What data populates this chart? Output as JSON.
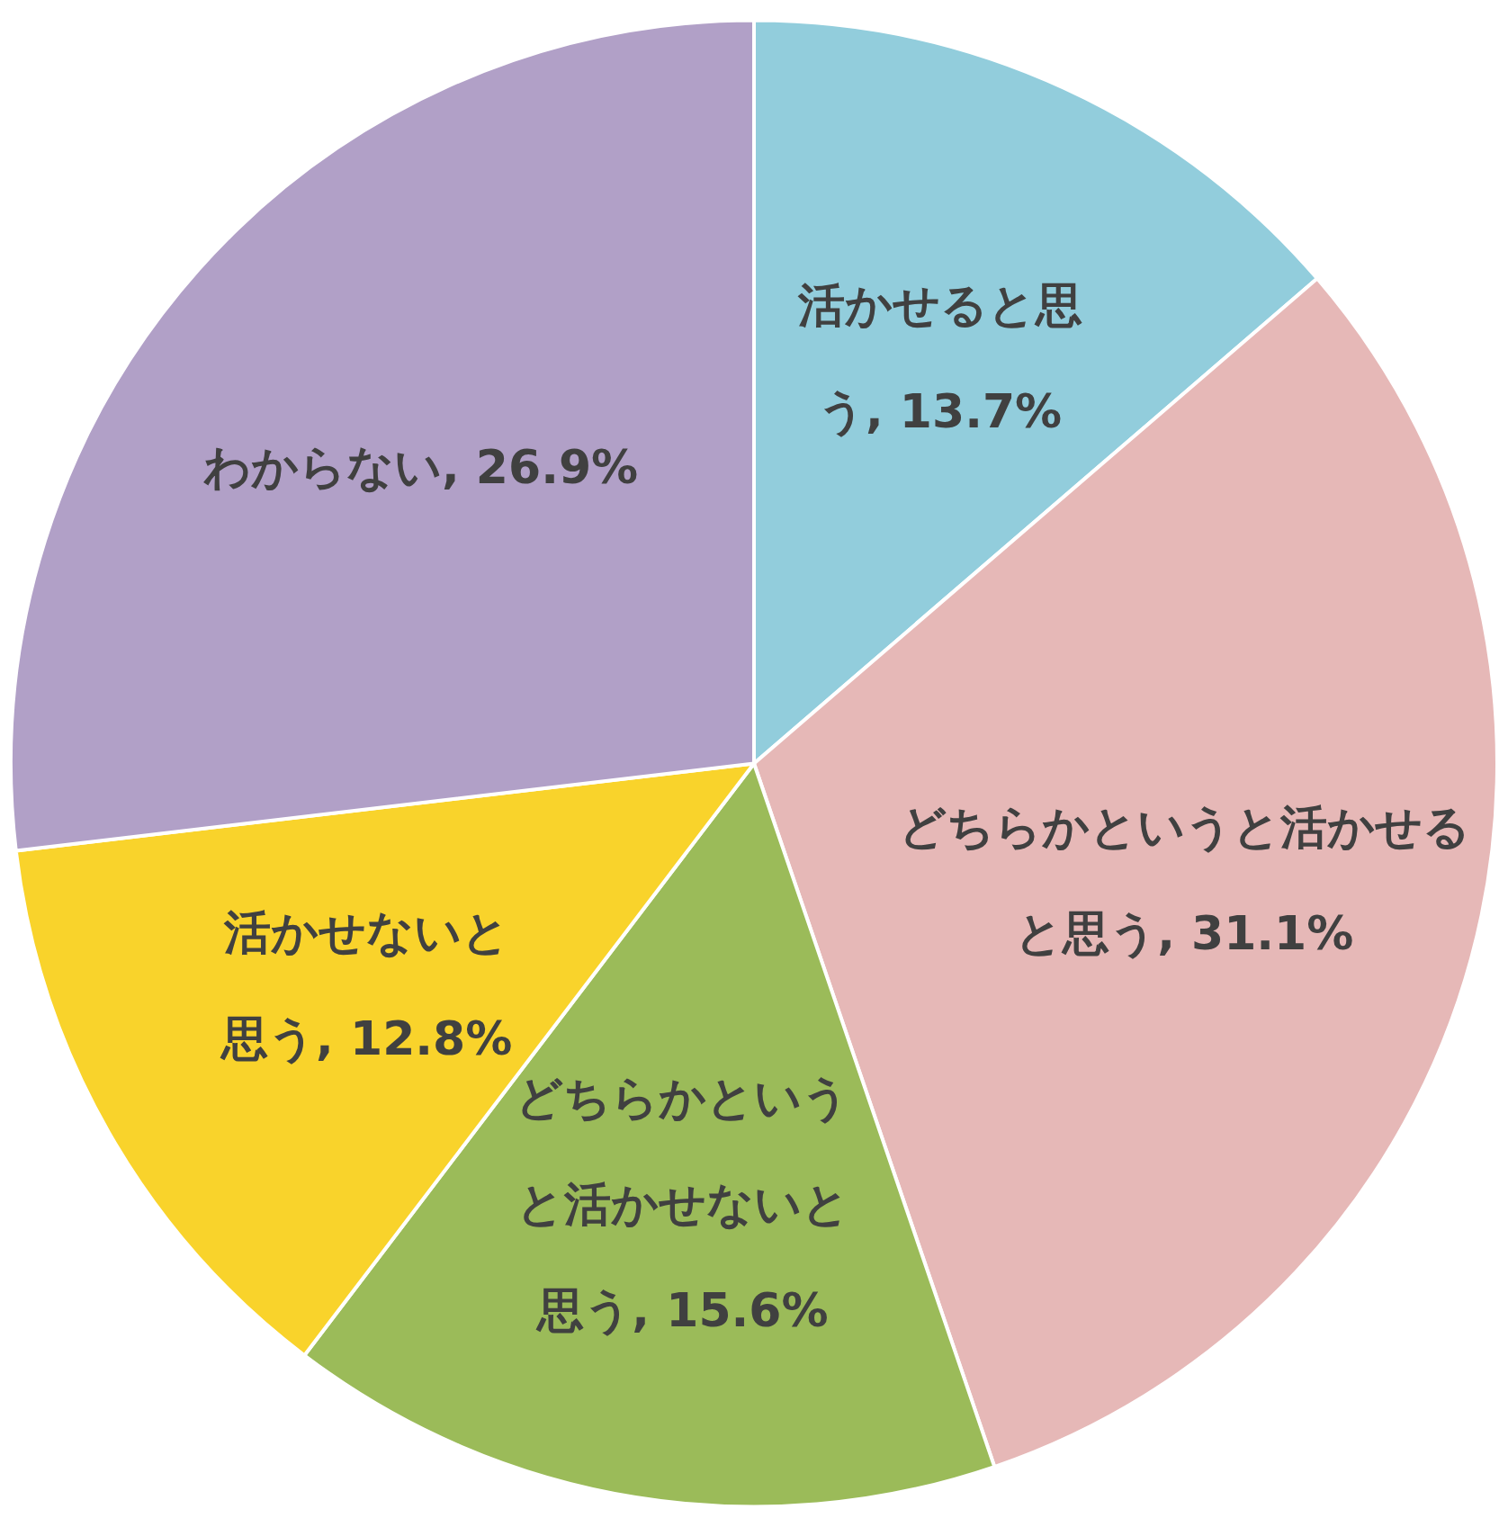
{
  "chart_data": {
    "type": "pie",
    "categories": [
      "活かせると思う",
      "どちらかというと活かせると思う",
      "どちらかというと活かせないと思う",
      "活かせないと思う",
      "わからない"
    ],
    "values": [
      13.7,
      31.1,
      15.6,
      12.8,
      26.9
    ],
    "value_labels": [
      "13.7%",
      "31.1%",
      "15.6%",
      "12.8%",
      "26.9%"
    ],
    "colors": [
      "#92cddc",
      "#e6b8b7",
      "#9bbb59",
      "#f9d32b",
      "#b1a0c7"
    ],
    "legend": false
  }
}
